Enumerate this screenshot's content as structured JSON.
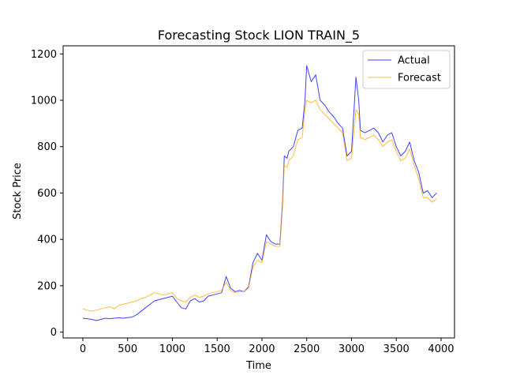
{
  "chart_data": {
    "type": "line",
    "title": "Forecasting Stock LION TRAIN_5",
    "xlabel": "Time",
    "ylabel": "Stock Price",
    "xlim": [
      -220,
      4150
    ],
    "ylim": [
      -25,
      1235
    ],
    "x_ticks": [
      0,
      500,
      1000,
      1500,
      2000,
      2500,
      3000,
      3500,
      4000
    ],
    "y_ticks": [
      0,
      200,
      400,
      600,
      800,
      1000,
      1200
    ],
    "grid": false,
    "legend_position": "top-right",
    "series": [
      {
        "name": "Actual",
        "color": "#0000ff",
        "x": [
          0,
          50,
          100,
          150,
          200,
          250,
          300,
          350,
          400,
          450,
          500,
          550,
          600,
          650,
          700,
          750,
          800,
          850,
          900,
          950,
          1000,
          1050,
          1100,
          1150,
          1200,
          1250,
          1300,
          1350,
          1400,
          1450,
          1500,
          1550,
          1600,
          1650,
          1700,
          1750,
          1800,
          1850,
          1900,
          1950,
          2000,
          2050,
          2100,
          2150,
          2200,
          2230,
          2250,
          2280,
          2300,
          2350,
          2400,
          2450,
          2480,
          2500,
          2550,
          2600,
          2650,
          2700,
          2750,
          2800,
          2850,
          2900,
          2950,
          3000,
          3050,
          3080,
          3100,
          3150,
          3200,
          3250,
          3300,
          3350,
          3400,
          3450,
          3500,
          3550,
          3600,
          3650,
          3700,
          3750,
          3800,
          3850,
          3900,
          3950
        ],
        "y": [
          60,
          58,
          55,
          50,
          55,
          60,
          58,
          60,
          62,
          60,
          63,
          65,
          75,
          90,
          105,
          120,
          135,
          140,
          145,
          150,
          155,
          130,
          105,
          100,
          135,
          145,
          130,
          135,
          155,
          160,
          165,
          170,
          240,
          190,
          175,
          180,
          175,
          195,
          300,
          340,
          310,
          420,
          390,
          380,
          380,
          560,
          760,
          750,
          780,
          800,
          870,
          880,
          1000,
          1150,
          1080,
          1110,
          1000,
          980,
          950,
          930,
          900,
          880,
          760,
          780,
          1100,
          1000,
          870,
          860,
          870,
          880,
          860,
          820,
          850,
          860,
          800,
          760,
          780,
          820,
          740,
          690,
          600,
          610,
          580,
          600
        ]
      },
      {
        "name": "Forecast",
        "color": "#ffa500",
        "x": [
          0,
          50,
          100,
          150,
          200,
          250,
          300,
          350,
          400,
          450,
          500,
          550,
          600,
          650,
          700,
          750,
          800,
          850,
          900,
          950,
          1000,
          1050,
          1100,
          1150,
          1200,
          1250,
          1300,
          1350,
          1400,
          1450,
          1500,
          1550,
          1600,
          1650,
          1700,
          1750,
          1800,
          1850,
          1900,
          1950,
          2000,
          2050,
          2100,
          2150,
          2200,
          2230,
          2250,
          2280,
          2300,
          2350,
          2400,
          2450,
          2480,
          2500,
          2550,
          2600,
          2650,
          2700,
          2750,
          2800,
          2850,
          2900,
          2950,
          3000,
          3050,
          3080,
          3100,
          3150,
          3200,
          3250,
          3300,
          3350,
          3400,
          3450,
          3500,
          3550,
          3600,
          3650,
          3700,
          3750,
          3800,
          3850,
          3900,
          3950
        ],
        "y": [
          100,
          95,
          90,
          95,
          100,
          105,
          110,
          100,
          115,
          120,
          125,
          130,
          135,
          145,
          150,
          160,
          170,
          165,
          160,
          165,
          170,
          145,
          135,
          130,
          150,
          160,
          150,
          155,
          165,
          170,
          175,
          180,
          215,
          180,
          170,
          175,
          175,
          190,
          280,
          310,
          300,
          390,
          380,
          370,
          370,
          540,
          720,
          710,
          740,
          760,
          830,
          840,
          960,
          1000,
          990,
          1000,
          960,
          940,
          920,
          900,
          880,
          860,
          740,
          750,
          960,
          940,
          840,
          830,
          840,
          850,
          830,
          800,
          820,
          830,
          780,
          740,
          750,
          790,
          720,
          660,
          580,
          580,
          560,
          575
        ]
      }
    ]
  }
}
